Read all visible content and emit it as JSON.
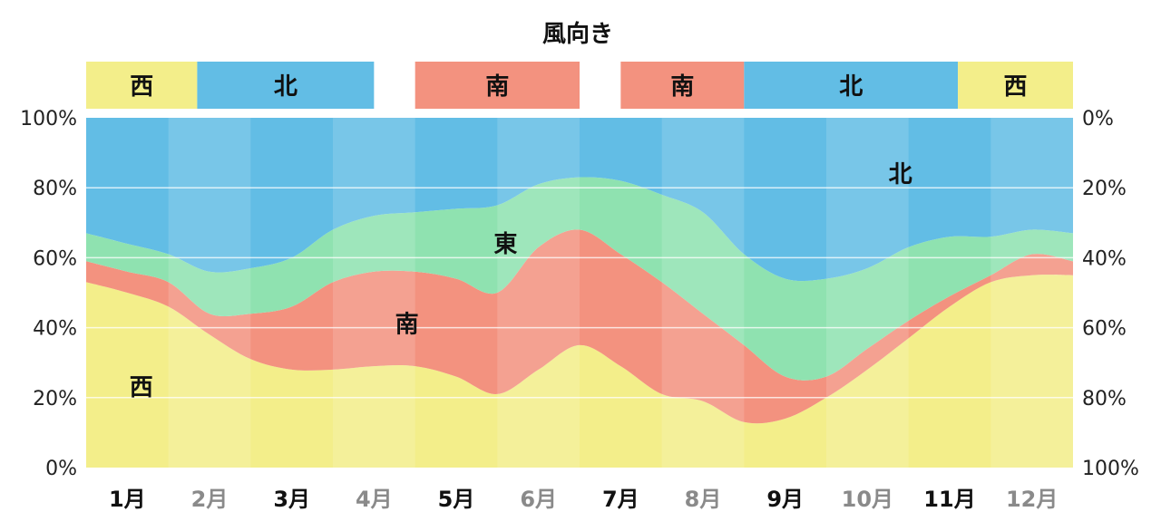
{
  "chart_data": {
    "type": "area",
    "title": "風向き",
    "categories": [
      "1月",
      "2月",
      "3月",
      "4月",
      "5月",
      "6月",
      "7月",
      "8月",
      "9月",
      "10月",
      "11月",
      "12月"
    ],
    "highlight_months": [
      1,
      3,
      5,
      7,
      9,
      11
    ],
    "dominant_bands": [
      {
        "label": "西",
        "color": "#F3EE8A",
        "start": 0,
        "end": 1.35
      },
      {
        "label": "北",
        "color": "#62BDE5",
        "start": 1.35,
        "end": 3.5
      },
      {
        "label": "南",
        "color": "#F3927F",
        "start": 4.0,
        "end": 6.0
      },
      {
        "label": "南",
        "color": "#F3927F",
        "start": 6.5,
        "end": 8.0
      },
      {
        "label": "北",
        "color": "#62BDE5",
        "start": 8.0,
        "end": 10.6
      },
      {
        "label": "西",
        "color": "#F3EE8A",
        "start": 10.6,
        "end": 12.0
      }
    ],
    "x": [
      0,
      0.5,
      1.0,
      1.5,
      2.0,
      2.5,
      3.0,
      3.5,
      4.0,
      4.5,
      5.0,
      5.5,
      6.0,
      6.5,
      7.0,
      7.5,
      8.0,
      8.5,
      9.0,
      9.5,
      10.0,
      10.5,
      11.0,
      11.5,
      12.0
    ],
    "series": [
      {
        "name": "西",
        "color": "#F3EE8A",
        "values": [
          53,
          50,
          46,
          38,
          31,
          28,
          28,
          29,
          29,
          26,
          21,
          28,
          35,
          29,
          21,
          19,
          13,
          14,
          20,
          28,
          37,
          46,
          53,
          55,
          55
        ]
      },
      {
        "name": "南",
        "color": "#F3927F",
        "values": [
          6,
          6,
          7,
          6,
          13,
          18,
          25,
          27,
          27,
          28,
          29,
          35,
          33,
          32,
          32,
          25,
          22,
          12,
          6,
          6,
          5,
          3,
          2,
          6,
          4
        ]
      },
      {
        "name": "東",
        "color": "#8FE2B0",
        "values": [
          8,
          8,
          8,
          12,
          13,
          14,
          15,
          16,
          17,
          20,
          25,
          18,
          15,
          21,
          25,
          29,
          26,
          28,
          28,
          23,
          21,
          17,
          11,
          7,
          8
        ]
      },
      {
        "name": "北",
        "color": "#62BDE5",
        "values": [
          33,
          36,
          39,
          44,
          43,
          40,
          32,
          28,
          27,
          26,
          25,
          19,
          17,
          18,
          22,
          27,
          39,
          46,
          46,
          43,
          37,
          34,
          34,
          32,
          33
        ]
      }
    ],
    "series_labels": [
      {
        "name": "西",
        "x": 0.67,
        "y": 23
      },
      {
        "name": "南",
        "x": 3.9,
        "y": 41
      },
      {
        "name": "東",
        "x": 5.1,
        "y": 64
      },
      {
        "name": "北",
        "x": 9.9,
        "y": 84
      }
    ],
    "y_left_ticks": [
      "0%",
      "20%",
      "40%",
      "60%",
      "80%",
      "100%"
    ],
    "y_right_ticks": [
      "100%",
      "80%",
      "60%",
      "40%",
      "20%",
      "0%"
    ],
    "ylim": [
      0,
      100
    ],
    "grid": true
  }
}
